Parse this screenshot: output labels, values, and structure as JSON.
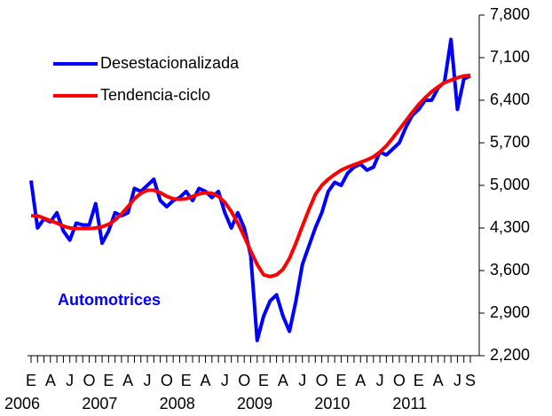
{
  "chart_data": {
    "type": "line",
    "annotation": "Automotrices",
    "categories": [
      "E",
      null,
      null,
      "A",
      null,
      null,
      "J",
      null,
      null,
      "O",
      null,
      null,
      "E",
      null,
      null,
      "A",
      null,
      null,
      "J",
      null,
      null,
      "O",
      null,
      null,
      "E",
      null,
      null,
      "A",
      null,
      null,
      "J",
      null,
      null,
      "O",
      null,
      null,
      "E",
      null,
      null,
      "A",
      null,
      null,
      "J",
      null,
      null,
      "O",
      null,
      null,
      "E",
      null,
      null,
      "A",
      null,
      null,
      "J",
      null,
      null,
      "O",
      null,
      null,
      "E",
      null,
      null,
      "A",
      null,
      null,
      "J",
      null,
      "S"
    ],
    "years": [
      "2006",
      "2007",
      "2008",
      "2009",
      "2010",
      "2011"
    ],
    "series": [
      {
        "name": "Desestacionalizada",
        "color": "#0000ff",
        "values": [
          5080,
          4300,
          4450,
          4400,
          4550,
          4250,
          4100,
          4380,
          4350,
          4350,
          4700,
          4050,
          4250,
          4550,
          4500,
          4550,
          4950,
          4900,
          5000,
          5100,
          4750,
          4650,
          4750,
          4800,
          4900,
          4750,
          4950,
          4900,
          4800,
          4900,
          4550,
          4300,
          4550,
          4300,
          3850,
          2450,
          2850,
          3100,
          3200,
          2850,
          2600,
          3100,
          3700,
          4000,
          4300,
          4550,
          4900,
          5050,
          5000,
          5200,
          5300,
          5350,
          5250,
          5300,
          5550,
          5500,
          5600,
          5700,
          5950,
          6150,
          6250,
          6400,
          6400,
          6600,
          6700,
          7400,
          6250,
          6750,
          6800
        ]
      },
      {
        "name": "Tendencia-ciclo",
        "color": "#ff0000",
        "values": [
          4500,
          4500,
          4460,
          4420,
          4380,
          4330,
          4300,
          4290,
          4290,
          4290,
          4300,
          4320,
          4360,
          4430,
          4530,
          4650,
          4780,
          4870,
          4920,
          4920,
          4880,
          4820,
          4780,
          4770,
          4780,
          4820,
          4860,
          4880,
          4870,
          4820,
          4720,
          4570,
          4380,
          4160,
          3920,
          3700,
          3530,
          3500,
          3530,
          3620,
          3800,
          4050,
          4330,
          4600,
          4850,
          5000,
          5100,
          5180,
          5250,
          5300,
          5340,
          5380,
          5420,
          5470,
          5550,
          5650,
          5780,
          5920,
          6060,
          6200,
          6330,
          6440,
          6540,
          6620,
          6690,
          6730,
          6770,
          6800,
          6810
        ]
      }
    ],
    "ylim": [
      2200,
      7800
    ],
    "yticks": [
      {
        "value": 2200,
        "label": "2,200"
      },
      {
        "value": 2900,
        "label": "2,900"
      },
      {
        "value": 3600,
        "label": "3,600"
      },
      {
        "value": 4300,
        "label": "4,300"
      },
      {
        "value": 5000,
        "label": "5,000"
      },
      {
        "value": 5700,
        "label": "5,700"
      },
      {
        "value": 6400,
        "label": "6,400"
      },
      {
        "value": 7100,
        "label": "7,100"
      },
      {
        "value": 7800,
        "label": "7,800"
      }
    ],
    "y_axis_side": "right",
    "legend": "upper left"
  }
}
